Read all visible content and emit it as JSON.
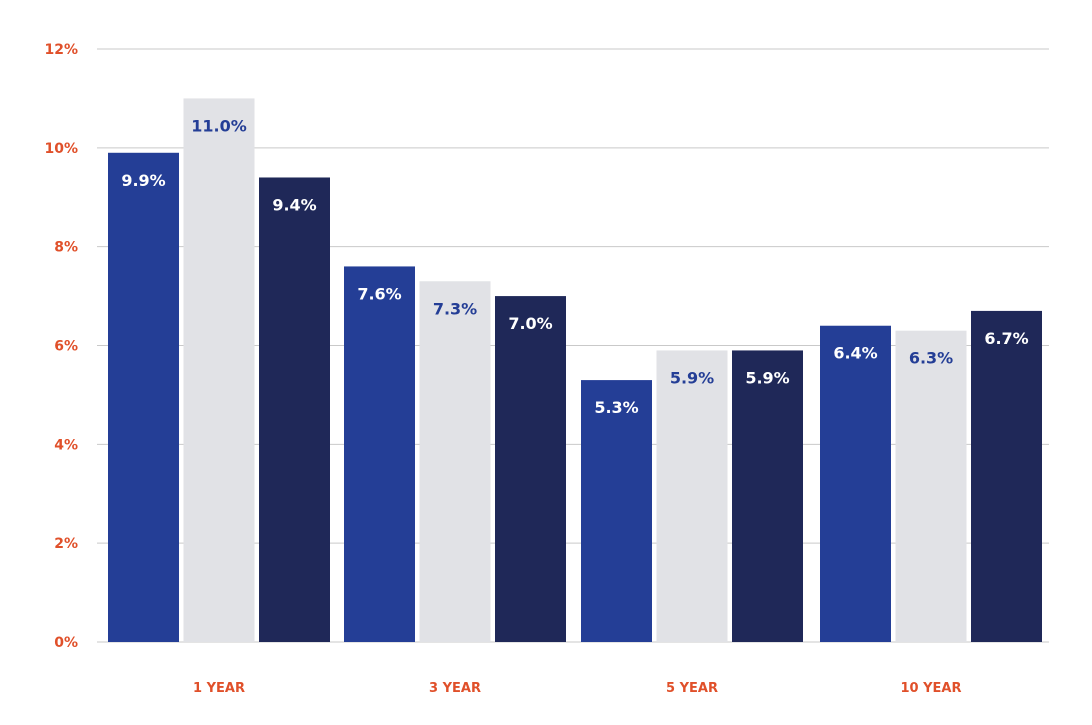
{
  "chart_data": {
    "type": "bar",
    "title": "",
    "xlabel": "",
    "ylabel": "",
    "categories": [
      "1 YEAR",
      "3 YEAR",
      "5 YEAR",
      "10 YEAR"
    ],
    "series": [
      {
        "values": [
          9.9,
          7.6,
          5.3,
          6.4
        ],
        "color": "#243e96",
        "label_color": "#ffffff"
      },
      {
        "values": [
          11.0,
          7.3,
          5.9,
          6.3
        ],
        "color": "#e1e2e6",
        "label_color": "#243e96"
      },
      {
        "values": [
          9.4,
          7.0,
          5.9,
          6.7
        ],
        "color": "#1f2858",
        "label_color": "#ffffff"
      }
    ],
    "data_labels": [
      [
        "9.9%",
        "7.6%",
        "5.3%",
        "6.4%"
      ],
      [
        "11.0%",
        "7.3%",
        "5.9%",
        "6.3%"
      ],
      [
        "9.4%",
        "7.0%",
        "5.9%",
        "6.7%"
      ]
    ],
    "yticks": [
      0,
      2,
      4,
      6,
      8,
      10,
      12
    ],
    "ytick_labels": [
      "0%",
      "2%",
      "4%",
      "6%",
      "8%",
      "10%",
      "12%"
    ],
    "ylim": [
      0,
      12
    ],
    "grid": true,
    "legend": "none",
    "colors": {
      "tick_text": "#e0502a",
      "gridline": "#c9c9c9"
    }
  }
}
